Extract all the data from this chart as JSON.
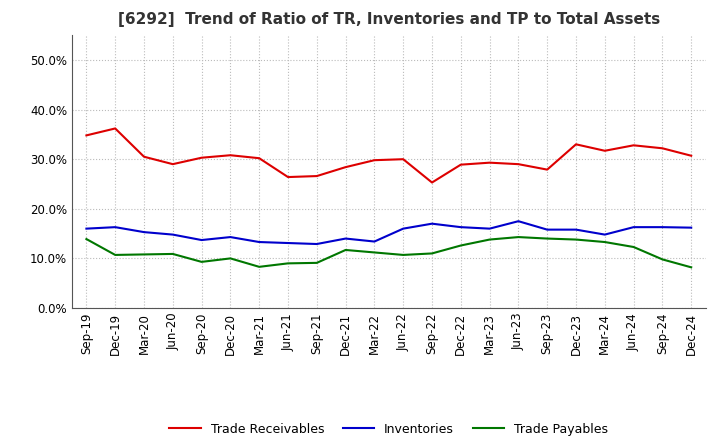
{
  "title": "[6292]  Trend of Ratio of TR, Inventories and TP to Total Assets",
  "x_labels": [
    "Sep-19",
    "Dec-19",
    "Mar-20",
    "Jun-20",
    "Sep-20",
    "Dec-20",
    "Mar-21",
    "Jun-21",
    "Sep-21",
    "Dec-21",
    "Mar-22",
    "Jun-22",
    "Sep-22",
    "Dec-22",
    "Mar-23",
    "Jun-23",
    "Sep-23",
    "Dec-23",
    "Mar-24",
    "Jun-24",
    "Sep-24",
    "Dec-24"
  ],
  "trade_receivables": [
    0.348,
    0.362,
    0.305,
    0.29,
    0.303,
    0.308,
    0.302,
    0.264,
    0.266,
    0.284,
    0.298,
    0.3,
    0.253,
    0.289,
    0.293,
    0.29,
    0.279,
    0.33,
    0.317,
    0.328,
    0.322,
    0.307
  ],
  "inventories": [
    0.16,
    0.163,
    0.153,
    0.148,
    0.137,
    0.143,
    0.133,
    0.131,
    0.129,
    0.14,
    0.134,
    0.16,
    0.17,
    0.163,
    0.16,
    0.175,
    0.158,
    0.158,
    0.148,
    0.163,
    0.163,
    0.162
  ],
  "trade_payables": [
    0.139,
    0.107,
    0.108,
    0.109,
    0.093,
    0.1,
    0.083,
    0.09,
    0.091,
    0.117,
    0.112,
    0.107,
    0.11,
    0.126,
    0.138,
    0.143,
    0.14,
    0.138,
    0.133,
    0.123,
    0.098,
    0.082
  ],
  "line_color_tr": "#dd0000",
  "line_color_inv": "#0000cc",
  "line_color_tp": "#007700",
  "ylim": [
    0.0,
    0.55
  ],
  "yticks": [
    0.0,
    0.1,
    0.2,
    0.3,
    0.4,
    0.5
  ],
  "background_color": "#ffffff",
  "grid_color": "#bbbbbb",
  "legend_labels": [
    "Trade Receivables",
    "Inventories",
    "Trade Payables"
  ],
  "title_fontsize": 11,
  "tick_fontsize": 8.5,
  "legend_fontsize": 9
}
